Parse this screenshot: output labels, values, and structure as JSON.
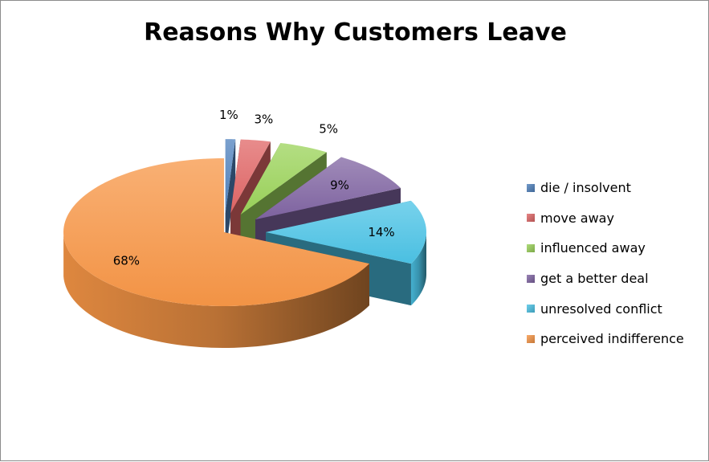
{
  "chart_data": {
    "type": "pie",
    "title": "Reasons Why Customers Leave",
    "labels": [
      "die / insolvent",
      "move away",
      "influenced away",
      "get a better deal",
      "unresolved conflict",
      "perceived indifference"
    ],
    "values": [
      1,
      3,
      5,
      9,
      14,
      68
    ],
    "value_labels": [
      "1%",
      "3%",
      "5%",
      "9%",
      "14%",
      "68%"
    ],
    "colors": [
      "#4f81bd",
      "#e06666",
      "#9bd35a",
      "#8064a2",
      "#4bc3e6",
      "#f79646"
    ],
    "exploded": true,
    "three_d": true,
    "legend_position": "right"
  }
}
